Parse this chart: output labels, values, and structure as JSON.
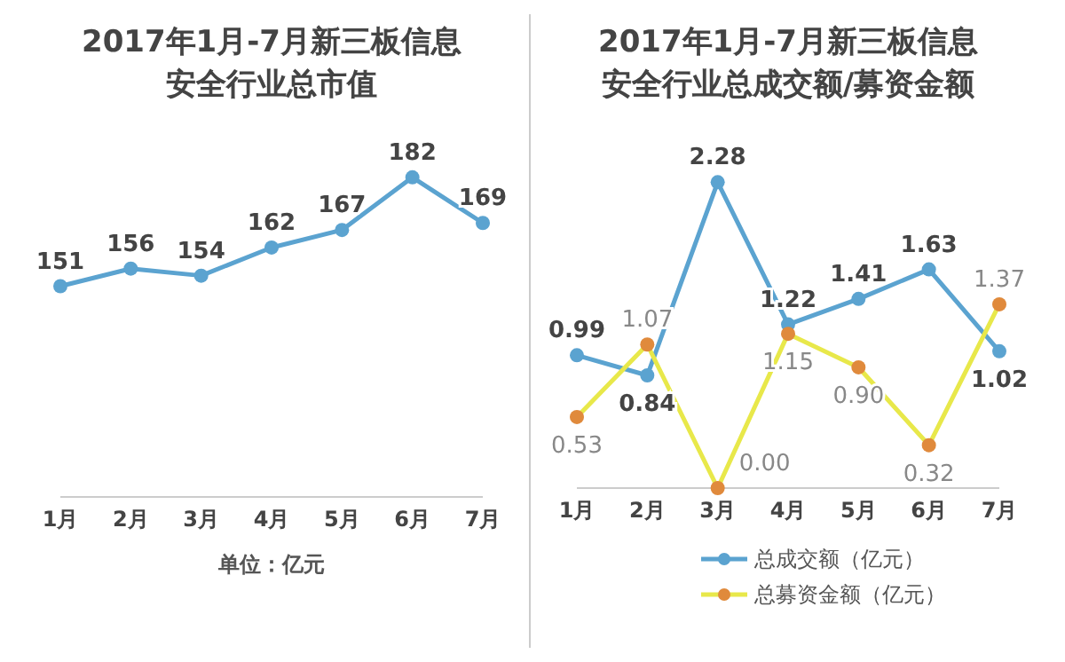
{
  "chart_data": [
    {
      "type": "line",
      "title": "2017年1月-7月新三板信息安全行业总市值",
      "categories": [
        "1月",
        "2月",
        "3月",
        "4月",
        "5月",
        "6月",
        "7月"
      ],
      "values": [
        151,
        156,
        154,
        162,
        167,
        182,
        169
      ],
      "color": "#5ba3d0",
      "data_labels": true,
      "marker": "circle",
      "grid": false,
      "legend": false,
      "annotations": [
        "单位：亿元"
      ]
    },
    {
      "type": "line",
      "title": "2017年1月-7月新三板信息安全行业总成交额/募资金额",
      "categories": [
        "1月",
        "2月",
        "3月",
        "4月",
        "5月",
        "6月",
        "7月"
      ],
      "series": [
        {
          "name": "总成交额（亿元）",
          "color": "#5ba3d0",
          "values": [
            0.99,
            0.84,
            2.28,
            1.22,
            1.41,
            1.63,
            1.02
          ],
          "value_labels": [
            "0.99",
            "0.84",
            "2.28",
            "1.22",
            "1.41",
            "1.63",
            "1.02"
          ]
        },
        {
          "name": "总募资金额（亿元）",
          "color": "#e8e84a",
          "values": [
            0.53,
            1.07,
            0.0,
            1.15,
            0.9,
            0.32,
            1.37
          ],
          "value_labels": [
            "0.53",
            "1.07",
            "0.00",
            "1.15",
            "0.90",
            "0.32",
            "1.37"
          ]
        }
      ],
      "data_labels": true,
      "marker": "circle",
      "grid": false,
      "legend": "bottom"
    }
  ]
}
